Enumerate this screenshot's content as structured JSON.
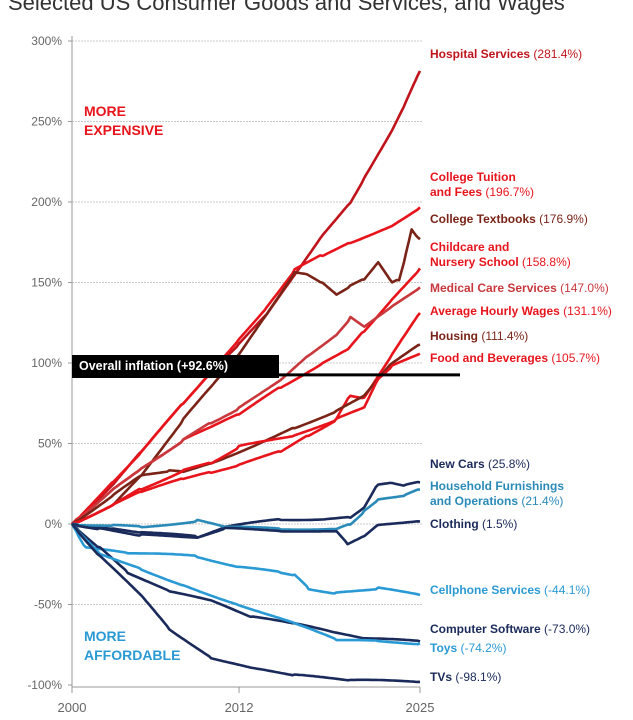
{
  "title": "Selected US Consumer Goods and Services, and Wages",
  "annotations": {
    "more_expensive": [
      "MORE",
      "EXPENSIVE"
    ],
    "more_affordable": [
      "MORE",
      "AFFORDABLE"
    ],
    "overall_inflation": "Overall inflation (+92.6%)"
  },
  "chart_data": {
    "type": "line",
    "title": "Selected US Consumer Goods and Services, and Wages",
    "xlabel": "",
    "ylabel": "",
    "xlim": [
      2000,
      2025
    ],
    "ylim": [
      -100,
      300
    ],
    "x_ticks": [
      "2000",
      "2012",
      "2025"
    ],
    "y_ticks": [
      "300%",
      "250%",
      "200%",
      "150%",
      "100%",
      "50%",
      "0%",
      "-50%",
      "-100%"
    ],
    "grid": "horizontal dotted",
    "reference_line": {
      "name": "Overall inflation",
      "value": 92.6
    },
    "series": [
      {
        "name": "Hospital Services",
        "label_value": "(281.4%)",
        "color": "#c0141c",
        "points": [
          [
            2000,
            0
          ],
          [
            2003,
            25
          ],
          [
            2005,
            45
          ],
          [
            2008,
            75
          ],
          [
            2010,
            95
          ],
          [
            2012,
            112
          ],
          [
            2014,
            130
          ],
          [
            2016,
            155
          ],
          [
            2018,
            180
          ],
          [
            2020,
            200
          ],
          [
            2021,
            215
          ],
          [
            2023,
            245
          ],
          [
            2024,
            262
          ],
          [
            2025,
            281.4
          ]
        ]
      },
      {
        "name": "College Tuition and Fees",
        "label_value": "(196.7%)",
        "color": "#e8141c",
        "points": [
          [
            2000,
            0
          ],
          [
            2003,
            27
          ],
          [
            2005,
            45
          ],
          [
            2008,
            75
          ],
          [
            2010,
            95
          ],
          [
            2012,
            115
          ],
          [
            2014,
            135
          ],
          [
            2016,
            158
          ],
          [
            2018,
            167
          ],
          [
            2020,
            175
          ],
          [
            2023,
            185
          ],
          [
            2025,
            196.7
          ]
        ]
      },
      {
        "name": "College Textbooks",
        "label_value": "(176.9%)",
        "color": "#7a2418",
        "points": [
          [
            2000,
            0
          ],
          [
            2003,
            12
          ],
          [
            2005,
            30
          ],
          [
            2008,
            65
          ],
          [
            2010,
            85
          ],
          [
            2012,
            105
          ],
          [
            2014,
            130
          ],
          [
            2016,
            156
          ],
          [
            2017,
            155
          ],
          [
            2018,
            150
          ],
          [
            2019,
            143
          ],
          [
            2020,
            148
          ],
          [
            2021,
            152
          ],
          [
            2022,
            163
          ],
          [
            2023,
            150
          ],
          [
            2023.5,
            152
          ],
          [
            2024,
            168
          ],
          [
            2024.4,
            183
          ],
          [
            2025,
            176.9
          ]
        ]
      },
      {
        "name": "Childcare and Nursery School",
        "label_value": "(158.8%)",
        "color": "#e8141c",
        "points": [
          [
            2000,
            0
          ],
          [
            2003,
            22
          ],
          [
            2005,
            35
          ],
          [
            2008,
            52
          ],
          [
            2010,
            60
          ],
          [
            2012,
            68
          ],
          [
            2015,
            85
          ],
          [
            2018,
            100
          ],
          [
            2020,
            110
          ],
          [
            2021,
            120
          ],
          [
            2023,
            140
          ],
          [
            2025,
            158.8
          ]
        ]
      },
      {
        "name": "Medical Care Services",
        "label_value": "(147.0%)",
        "color": "#c8383c",
        "points": [
          [
            2000,
            0
          ],
          [
            2003,
            22
          ],
          [
            2005,
            35
          ],
          [
            2008,
            52
          ],
          [
            2010,
            63
          ],
          [
            2012,
            72
          ],
          [
            2015,
            90
          ],
          [
            2017,
            105
          ],
          [
            2019,
            118
          ],
          [
            2020,
            128
          ],
          [
            2021,
            122
          ],
          [
            2023,
            135
          ],
          [
            2025,
            147.0
          ]
        ]
      },
      {
        "name": "Average Hourly Wages",
        "label_value": "(131.1%)",
        "color": "#e8141c",
        "points": [
          [
            2000,
            0
          ],
          [
            2003,
            12
          ],
          [
            2005,
            20
          ],
          [
            2008,
            28
          ],
          [
            2010,
            32
          ],
          [
            2012,
            37
          ],
          [
            2015,
            45
          ],
          [
            2017,
            55
          ],
          [
            2019,
            65
          ],
          [
            2020,
            80
          ],
          [
            2021,
            78
          ],
          [
            2023,
            105
          ],
          [
            2025,
            131.1
          ]
        ]
      },
      {
        "name": "Housing",
        "label_value": "(111.4%)",
        "color": "#7a2418",
        "points": [
          [
            2000,
            0
          ],
          [
            2003,
            18
          ],
          [
            2005,
            30
          ],
          [
            2007,
            33
          ],
          [
            2008,
            32
          ],
          [
            2010,
            38
          ],
          [
            2012,
            45
          ],
          [
            2016,
            60
          ],
          [
            2019,
            70
          ],
          [
            2021,
            80
          ],
          [
            2023,
            100
          ],
          [
            2025,
            111.4
          ]
        ]
      },
      {
        "name": "Food and Beverages",
        "label_value": "(105.7%)",
        "color": "#e8141c",
        "points": [
          [
            2000,
            0
          ],
          [
            2003,
            12
          ],
          [
            2005,
            22
          ],
          [
            2008,
            33
          ],
          [
            2010,
            38
          ],
          [
            2012,
            48
          ],
          [
            2016,
            55
          ],
          [
            2019,
            65
          ],
          [
            2021,
            72
          ],
          [
            2022,
            90
          ],
          [
            2023,
            98
          ],
          [
            2025,
            105.7
          ]
        ]
      },
      {
        "name": "New Cars",
        "label_value": "(25.8%)",
        "color": "#1a2a5a",
        "points": [
          [
            2000,
            0
          ],
          [
            2003,
            -3
          ],
          [
            2005,
            -5
          ],
          [
            2009,
            -8
          ],
          [
            2011,
            -2
          ],
          [
            2015,
            3
          ],
          [
            2018,
            3
          ],
          [
            2020,
            4
          ],
          [
            2021,
            10
          ],
          [
            2022,
            25
          ],
          [
            2023,
            26
          ],
          [
            2024,
            24
          ],
          [
            2025,
            25.8
          ]
        ]
      },
      {
        "name": "Household Furnishings and Operations",
        "label_value": "(21.4%)",
        "color": "#2a8ab8",
        "points": [
          [
            2000,
            0
          ],
          [
            2003,
            -1
          ],
          [
            2005,
            -2
          ],
          [
            2009,
            2
          ],
          [
            2011,
            -2
          ],
          [
            2015,
            -3
          ],
          [
            2019,
            -3
          ],
          [
            2020,
            0
          ],
          [
            2021,
            8
          ],
          [
            2022,
            15
          ],
          [
            2024,
            18
          ],
          [
            2025,
            21.4
          ]
        ]
      },
      {
        "name": "Clothing",
        "label_value": "(1.5%)",
        "color": "#1a2a5a",
        "points": [
          [
            2000,
            0
          ],
          [
            2002,
            -3
          ],
          [
            2005,
            -7
          ],
          [
            2009,
            -8
          ],
          [
            2011,
            -3
          ],
          [
            2015,
            -4
          ],
          [
            2019,
            -5
          ],
          [
            2019.8,
            -12
          ],
          [
            2021,
            -7
          ],
          [
            2022,
            0
          ],
          [
            2025,
            1.5
          ]
        ]
      },
      {
        "name": "Cellphone Services",
        "label_value": "(-44.1%)",
        "color": "#2a9ad4",
        "points": [
          [
            2000,
            0
          ],
          [
            2001,
            -15
          ],
          [
            2004,
            -18
          ],
          [
            2009,
            -20
          ],
          [
            2012,
            -27
          ],
          [
            2015,
            -30
          ],
          [
            2016,
            -32
          ],
          [
            2017,
            -40
          ],
          [
            2019,
            -43
          ],
          [
            2022,
            -40
          ],
          [
            2025,
            -44.1
          ]
        ]
      },
      {
        "name": "Computer Software",
        "label_value": "(-73.0%)",
        "color": "#1a2a5a",
        "points": [
          [
            2000,
            0
          ],
          [
            2002,
            -15
          ],
          [
            2004,
            -30
          ],
          [
            2007,
            -42
          ],
          [
            2010,
            -48
          ],
          [
            2013,
            -58
          ],
          [
            2016,
            -62
          ],
          [
            2019,
            -68
          ],
          [
            2021,
            -71
          ],
          [
            2025,
            -73.0
          ]
        ]
      },
      {
        "name": "Toys",
        "label_value": "(-74.2%)",
        "color": "#2a9ad4",
        "points": [
          [
            2000,
            0
          ],
          [
            2002,
            -18
          ],
          [
            2005,
            -28
          ],
          [
            2008,
            -38
          ],
          [
            2012,
            -50
          ],
          [
            2016,
            -62
          ],
          [
            2019,
            -72
          ],
          [
            2022,
            -73
          ],
          [
            2025,
            -74.2
          ]
        ]
      },
      {
        "name": "TVs",
        "label_value": "(-98.1%)",
        "color": "#1a2a5a",
        "points": [
          [
            2000,
            0
          ],
          [
            2002,
            -20
          ],
          [
            2005,
            -45
          ],
          [
            2007,
            -65
          ],
          [
            2010,
            -83
          ],
          [
            2013,
            -90
          ],
          [
            2016,
            -94
          ],
          [
            2020,
            -97
          ],
          [
            2025,
            -98.1
          ]
        ]
      }
    ]
  }
}
